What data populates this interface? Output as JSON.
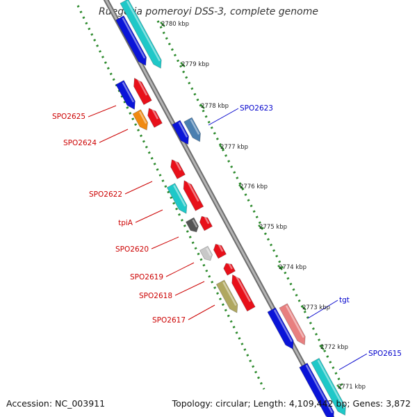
{
  "title": "Ruegeria pomeroyi DSS-3, complete genome",
  "footer": {
    "accession": "Accession: NC_003911",
    "summary": "Topology: circular; Length: 4,109,442 bp; Genes: 3,872"
  },
  "ruler": {
    "labels": [
      "2780 kbp",
      "2779 kbp",
      "2778 kbp",
      "2777 kbp",
      "2776 kbp",
      "2775 kbp",
      "2774 kbp",
      "2773 kbp",
      "2772 kbp",
      "2771 kbp"
    ]
  },
  "genes": {
    "labels": [
      {
        "text": "SPO2625",
        "color": "#cc0000"
      },
      {
        "text": "SPO2624",
        "color": "#cc0000"
      },
      {
        "text": "SPO2622",
        "color": "#cc0000"
      },
      {
        "text": "tpiA",
        "color": "#cc0000"
      },
      {
        "text": "SPO2620",
        "color": "#cc0000"
      },
      {
        "text": "SPO2619",
        "color": "#cc0000"
      },
      {
        "text": "SPO2618",
        "color": "#cc0000"
      },
      {
        "text": "SPO2617",
        "color": "#cc0000"
      },
      {
        "text": "SPO2623",
        "color": "#0000cc"
      },
      {
        "text": "tgt",
        "color": "#0000cc"
      },
      {
        "text": "SPO2615",
        "color": "#0000cc"
      }
    ]
  },
  "colors": {
    "backbone": "#8a8a8a",
    "rulerDots": "#2e8b2e",
    "blue": "#0a14d8",
    "cyan": "#1fc8c8",
    "red": "#e8101a",
    "orange": "#f08a10",
    "steel": "#4a7fb0",
    "darkgray": "#555555",
    "lightgray": "#c8c8c8",
    "olive": "#b0a860",
    "pink": "#e87f7f",
    "redText": "#cc0000",
    "blueText": "#0000cc"
  }
}
